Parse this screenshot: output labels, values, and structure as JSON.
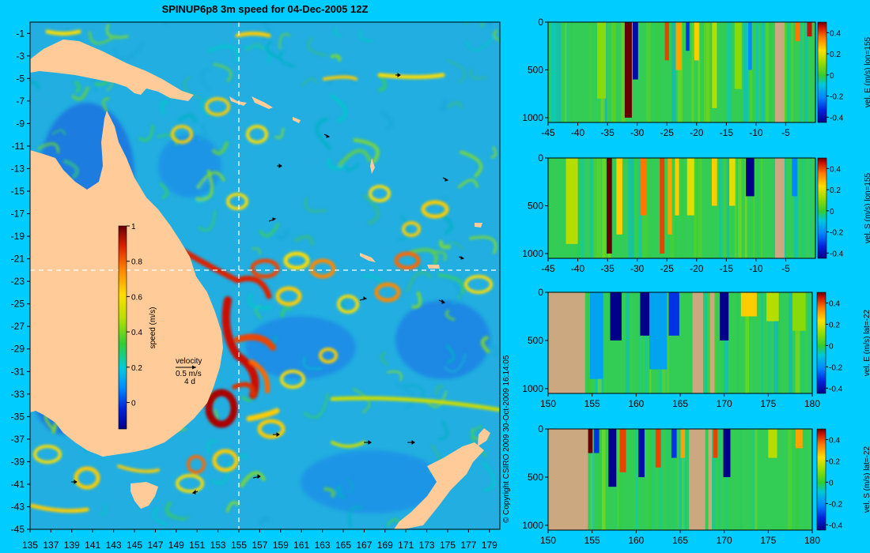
{
  "figure": {
    "title": "SPINUP6p8 3m speed for 04-Dec-2005 12Z",
    "copyright": "© Copyright CSIRO 2009   30-Oct-2009 16:14:05",
    "velocity_legend": {
      "label": "velocity",
      "speed": "0.5 m/s",
      "days": "4 d"
    }
  },
  "colors": {
    "background": "#00ccff",
    "land": "#ffcc99",
    "section_land": "#cca880",
    "ocean_base": "#22aee0",
    "crosshair": "#ffffff"
  },
  "chart_data": [
    {
      "id": "map",
      "type": "heatmap",
      "xlabel": "",
      "ylabel": "",
      "x_ticks": [
        "135",
        "137",
        "139",
        "141",
        "143",
        "145",
        "147",
        "149",
        "151",
        "153",
        "155",
        "157",
        "159",
        "161",
        "163",
        "165",
        "167",
        "169",
        "171",
        "173",
        "175",
        "177",
        "179"
      ],
      "y_ticks": [
        "-1",
        "-3",
        "-5",
        "-7",
        "-9",
        "-11",
        "-13",
        "-15",
        "-17",
        "-19",
        "-21",
        "-23",
        "-25",
        "-27",
        "-29",
        "-31",
        "-33",
        "-35",
        "-37",
        "-39",
        "-41",
        "-43",
        "-45"
      ],
      "xlim": [
        135,
        180
      ],
      "ylim": [
        -45,
        0
      ],
      "crosshair": {
        "lon": 155,
        "lat": -22
      },
      "colorbar": {
        "label": "speed (m/s)",
        "ticks": [
          "0",
          "0.2",
          "0.4",
          "0.6",
          "0.8",
          "1"
        ],
        "range": [
          -0.15,
          1
        ]
      }
    },
    {
      "id": "section1",
      "type": "heatmap",
      "colorbar_label": "vel. E (m/s) lon=155",
      "x_ticks": [
        "-45",
        "-40",
        "-35",
        "-30",
        "-25",
        "-20",
        "-15",
        "-10",
        "-5"
      ],
      "xlim": [
        -45,
        0
      ],
      "y_ticks": [
        "0",
        "500",
        "1000"
      ],
      "ylim": [
        0,
        1050
      ],
      "cbar_ticks": [
        "0.4",
        "0.2",
        "0",
        "-0.2",
        "-0.4"
      ],
      "crange": [
        -0.45,
        0.5
      ],
      "land_x": [
        [
          -6.8,
          -5.2
        ]
      ],
      "features": [
        [
          -31.5,
          0.5,
          1.2,
          1.0
        ],
        [
          -30.3,
          -0.4,
          0.9,
          0.6
        ],
        [
          -25,
          0.4,
          0.7,
          0.4
        ],
        [
          -23,
          0.3,
          1.0,
          0.5
        ],
        [
          -21.5,
          -0.3,
          0.6,
          0.3
        ],
        [
          -20,
          0.25,
          0.8,
          0.4
        ],
        [
          -17,
          0.15,
          0.8,
          0.9
        ],
        [
          -11,
          -0.2,
          0.6,
          0.5
        ],
        [
          -3,
          0.35,
          0.7,
          0.2
        ],
        [
          -1,
          0.45,
          0.8,
          0.15
        ],
        [
          -36,
          0.1,
          1.5,
          0.8
        ],
        [
          -13,
          0.1,
          1.2,
          0.7
        ]
      ]
    },
    {
      "id": "section2",
      "type": "heatmap",
      "colorbar_label": "vel. S (m/s) lon=155",
      "x_ticks": [
        "-45",
        "-40",
        "-35",
        "-30",
        "-25",
        "-20",
        "-15",
        "-10",
        "-5"
      ],
      "xlim": [
        -45,
        0
      ],
      "y_ticks": [
        "0",
        "500",
        "1000"
      ],
      "ylim": [
        0,
        1050
      ],
      "cbar_ticks": [
        "0.4",
        "0.2",
        "0",
        "-0.2",
        "-0.4"
      ],
      "crange": [
        -0.45,
        0.5
      ],
      "land_x": [
        [
          -6.8,
          -5.2
        ]
      ],
      "features": [
        [
          -34.7,
          0.5,
          0.9,
          1.0
        ],
        [
          -33,
          0.25,
          1.0,
          0.8
        ],
        [
          -29,
          0.35,
          1.0,
          0.6
        ],
        [
          -25.8,
          0.4,
          0.8,
          1.0
        ],
        [
          -24.5,
          0.3,
          0.7,
          0.8
        ],
        [
          -23.3,
          0.25,
          0.7,
          0.6
        ],
        [
          -21,
          0.2,
          1.2,
          0.6
        ],
        [
          -17,
          0.25,
          0.9,
          0.5
        ],
        [
          -11,
          -0.45,
          1.4,
          0.4
        ],
        [
          -3.5,
          -0.2,
          0.9,
          0.4
        ],
        [
          -41,
          0.15,
          2.0,
          0.9
        ],
        [
          -14,
          0.2,
          1.0,
          0.5
        ]
      ]
    },
    {
      "id": "section3",
      "type": "heatmap",
      "colorbar_label": "vel. E (m/s) lat=-22",
      "x_ticks": [
        "150",
        "155",
        "160",
        "165",
        "170",
        "175",
        "180"
      ],
      "xlim": [
        150,
        180
      ],
      "y_ticks": [
        "0",
        "500",
        "1000"
      ],
      "ylim": [
        0,
        1050
      ],
      "cbar_ticks": [
        "0.4",
        "0.2",
        "0",
        "-0.2",
        "-0.4"
      ],
      "crange": [
        -0.45,
        0.5
      ],
      "land_x": [
        [
          150,
          154.2
        ],
        [
          166.4,
          167.6
        ],
        [
          168.4,
          168.9
        ]
      ],
      "features": [
        [
          157.7,
          -0.45,
          1.3,
          0.5
        ],
        [
          161,
          -0.45,
          1.1,
          0.45
        ],
        [
          164.3,
          -0.3,
          1.2,
          0.45
        ],
        [
          170,
          -0.45,
          1.0,
          0.5
        ],
        [
          172.8,
          0.25,
          1.8,
          0.25
        ],
        [
          175.5,
          0.15,
          1.4,
          0.3
        ],
        [
          178.5,
          0.1,
          1.5,
          0.4
        ],
        [
          155.5,
          -0.15,
          1.5,
          0.9
        ],
        [
          162.5,
          -0.15,
          2.0,
          0.8
        ],
        [
          167,
          -0.1,
          1.0,
          0.6
        ]
      ]
    },
    {
      "id": "section4",
      "type": "heatmap",
      "colorbar_label": "vel. S (m/s) lat=-22",
      "x_ticks": [
        "150",
        "155",
        "160",
        "165",
        "170",
        "175",
        "180"
      ],
      "xlim": [
        150,
        180
      ],
      "y_ticks": [
        "0",
        "500",
        "1000"
      ],
      "ylim": [
        0,
        1050
      ],
      "cbar_ticks": [
        "0.4",
        "0.2",
        "0",
        "-0.2",
        "-0.4"
      ],
      "crange": [
        -0.45,
        0.5
      ],
      "land_x": [
        [
          150,
          154.5
        ],
        [
          166,
          167.8
        ],
        [
          168.2,
          168.6
        ]
      ],
      "features": [
        [
          154.8,
          0.5,
          0.5,
          0.25
        ],
        [
          155.5,
          -0.3,
          0.6,
          0.25
        ],
        [
          157.3,
          -0.45,
          0.9,
          0.6
        ],
        [
          158.5,
          0.4,
          0.7,
          0.45
        ],
        [
          160.6,
          -0.4,
          0.7,
          0.5
        ],
        [
          162.5,
          0.4,
          0.6,
          0.4
        ],
        [
          164.3,
          -0.3,
          0.6,
          0.3
        ],
        [
          165.3,
          0.3,
          0.5,
          0.3
        ],
        [
          169,
          0.4,
          0.5,
          0.3
        ],
        [
          170.3,
          -0.45,
          0.8,
          0.5
        ],
        [
          175.5,
          0.15,
          1.0,
          0.3
        ],
        [
          178.5,
          0.3,
          0.8,
          0.2
        ]
      ]
    }
  ]
}
